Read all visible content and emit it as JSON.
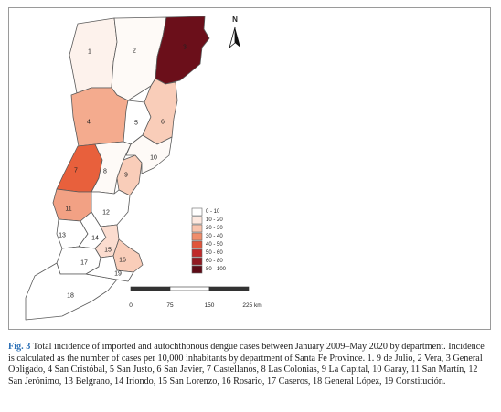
{
  "map": {
    "north_label": "N",
    "departments": [
      {
        "num": "1",
        "name": "9 de Julio",
        "fill": "#fdf2ec"
      },
      {
        "num": "2",
        "name": "Vera",
        "fill": "#fefaf7"
      },
      {
        "num": "3",
        "name": "General Obligado",
        "fill": "#6b0f1a"
      },
      {
        "num": "4",
        "name": "San Cristóbal",
        "fill": "#f4ab8e"
      },
      {
        "num": "5",
        "name": "San Justo",
        "fill": "#ffffff"
      },
      {
        "num": "6",
        "name": "San Javier",
        "fill": "#f9cdb9"
      },
      {
        "num": "7",
        "name": "Castellanos",
        "fill": "#e8603c"
      },
      {
        "num": "8",
        "name": "Las Colonias",
        "fill": "#fefaf7"
      },
      {
        "num": "9",
        "name": "La Capital",
        "fill": "#f9cdb9"
      },
      {
        "num": "10",
        "name": "Garay",
        "fill": "#fefaf7"
      },
      {
        "num": "11",
        "name": "San Martín",
        "fill": "#f2a184"
      },
      {
        "num": "12",
        "name": "San Jerónimo",
        "fill": "#ffffff"
      },
      {
        "num": "13",
        "name": "Belgrano",
        "fill": "#ffffff"
      },
      {
        "num": "14",
        "name": "Iriondo",
        "fill": "#ffffff"
      },
      {
        "num": "15",
        "name": "San Lorenzo",
        "fill": "#fbdccf"
      },
      {
        "num": "16",
        "name": "Rosario",
        "fill": "#f9cdb9"
      },
      {
        "num": "17",
        "name": "Caseros",
        "fill": "#ffffff"
      },
      {
        "num": "18",
        "name": "General López",
        "fill": "#ffffff"
      },
      {
        "num": "19",
        "name": "Constitución",
        "fill": "#ffffff"
      }
    ],
    "legend": [
      {
        "label": "0 - 10",
        "color": "#ffffff"
      },
      {
        "label": "10 - 20",
        "color": "#fde8df"
      },
      {
        "label": "20 - 30",
        "color": "#f9c4ae"
      },
      {
        "label": "30 - 40",
        "color": "#f08d6b"
      },
      {
        "label": "40 - 50",
        "color": "#e0553a"
      },
      {
        "label": "50 - 60",
        "color": "#c02a2a"
      },
      {
        "label": "60 - 80",
        "color": "#911a22"
      },
      {
        "label": "80 - 100",
        "color": "#5e0b16"
      }
    ],
    "scale": {
      "ticks": [
        "0",
        "75",
        "150",
        "225 km"
      ]
    }
  },
  "caption": {
    "label": "Fig. 3",
    "text": "Total incidence of imported and autochthonous dengue cases between January 2009–May 2020 by department. Incidence is calculated as the number of cases per 10,000 inhabitants by department of Santa Fe Province. 1. 9 de Julio, 2 Vera, 3 General Obligado, 4 San Cristóbal, 5 San Justo, 6 San Javier, 7 Castellanos, 8 Las Colonias, 9 La Capital, 10 Garay, 11 San Martín, 12 San Jerónimo, 13 Belgrano, 14 Iriondo, 15 San Lorenzo, 16 Rosario, 17 Caseros, 18 General López, 19 Constitución."
  }
}
